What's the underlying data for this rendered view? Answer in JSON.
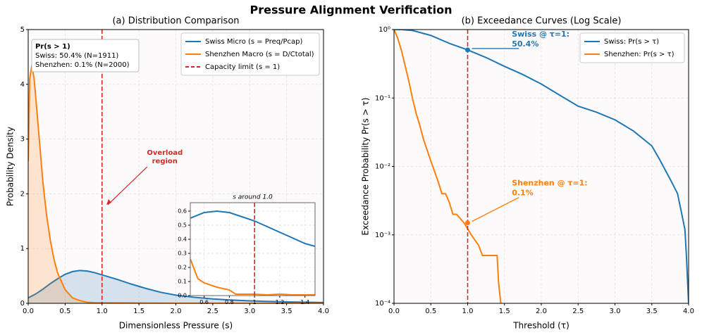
{
  "title": "Pressure Alignment Verification",
  "chart_data": [
    {
      "type": "line",
      "title": "(a) Distribution Comparison",
      "x_label": "Dimensionless Pressure (s)",
      "y_label": "Probability Density",
      "xlim": [
        0,
        4
      ],
      "ylim": [
        0,
        5
      ],
      "xticks": [
        {
          "value": 0,
          "label": "0.0"
        },
        {
          "value": 0.5,
          "label": "0.5"
        },
        {
          "value": 1,
          "label": "1.0"
        },
        {
          "value": 1.5,
          "label": "1.5"
        },
        {
          "value": 2,
          "label": "2.0"
        },
        {
          "value": 2.5,
          "label": "2.5"
        },
        {
          "value": 3,
          "label": "3.0"
        },
        {
          "value": 3.5,
          "label": "3.5"
        },
        {
          "value": 4,
          "label": "4.0"
        }
      ],
      "yticks": [
        0,
        1,
        2,
        3,
        4,
        5
      ],
      "grid": true,
      "fill": true,
      "legend": "upper right",
      "series": [
        {
          "name": "Swiss Micro (s = Preq/Pcap)",
          "color": "#1f77b4",
          "x": [
            0,
            0.1,
            0.2,
            0.3,
            0.4,
            0.5,
            0.6,
            0.7,
            0.8,
            0.9,
            1.0,
            1.2,
            1.4,
            1.6,
            1.8,
            2.0,
            2.25,
            2.5,
            2.75,
            3.0,
            3.5,
            4.0
          ],
          "values": [
            0.1,
            0.17,
            0.26,
            0.36,
            0.45,
            0.53,
            0.58,
            0.6,
            0.59,
            0.56,
            0.52,
            0.44,
            0.35,
            0.27,
            0.2,
            0.15,
            0.11,
            0.08,
            0.06,
            0.045,
            0.025,
            0.015
          ]
        },
        {
          "name": "Shenzhen Macro (s = D/Ctotal)",
          "color": "#ff7f0e",
          "x": [
            0,
            0.02,
            0.05,
            0.08,
            0.1,
            0.15,
            0.2,
            0.25,
            0.3,
            0.35,
            0.4,
            0.5,
            0.6,
            0.7,
            0.8,
            0.9,
            1.0,
            1.5,
            2.0,
            3.0,
            4.0
          ],
          "values": [
            2.6,
            4.1,
            4.35,
            4.1,
            3.8,
            3.0,
            2.2,
            1.6,
            1.15,
            0.8,
            0.55,
            0.25,
            0.1,
            0.05,
            0.02,
            0.01,
            0.01,
            0.005,
            0,
            0,
            0
          ]
        }
      ],
      "reference_lines": [
        {
          "x": 1,
          "label": "Capacity limit (s = 1)",
          "color": "#d62728"
        }
      ],
      "info_box": [
        "Pr(s > 1)",
        "Swiss: 50.4% (N=1911)",
        "Shenzhen: 0.1% (N=2000)"
      ],
      "annotations": [
        {
          "text": [
            "Overload",
            "region"
          ],
          "color": "#d62728"
        }
      ]
    },
    {
      "type": "line",
      "title": "s around 1.0",
      "xlim": [
        0.49,
        1.48
      ],
      "ylim": [
        0,
        0.66
      ],
      "xticks": [
        0.6,
        0.8,
        1.0,
        1.2,
        1.4
      ],
      "yticks": [
        {
          "value": 0,
          "label": "0.0"
        },
        0.1,
        0.2,
        0.3,
        0.4,
        0.5,
        0.6
      ],
      "grid": true,
      "series": [
        {
          "color": "#1f77b4",
          "x": [
            0.49,
            0.6,
            0.7,
            0.8,
            0.9,
            1.0,
            1.1,
            1.2,
            1.3,
            1.4,
            1.48
          ],
          "values": [
            0.55,
            0.59,
            0.6,
            0.59,
            0.56,
            0.53,
            0.49,
            0.45,
            0.41,
            0.37,
            0.35
          ]
        },
        {
          "color": "#ff7f0e",
          "x": [
            0.49,
            0.55,
            0.6,
            0.7,
            0.8,
            0.85,
            0.9,
            1.0,
            1.1,
            1.2,
            1.3,
            1.48
          ],
          "values": [
            0.26,
            0.12,
            0.09,
            0.06,
            0.04,
            0.01,
            0.01,
            0.01,
            0.005,
            0.01,
            0.005,
            0.005
          ]
        }
      ],
      "reference_lines": [
        {
          "x": 1,
          "color": "#d62728"
        }
      ]
    },
    {
      "type": "line",
      "title": "(b) Exceedance Curves (Log Scale)",
      "x_label": "Threshold (τ)",
      "y_label": "Exceedance Probability  Pr(s > τ)",
      "xlim": [
        0,
        4
      ],
      "ylim": [
        0.0001,
        1
      ],
      "log_y": true,
      "xticks": [
        {
          "value": 0,
          "label": "0.0"
        },
        {
          "value": 0.5,
          "label": "0.5"
        },
        {
          "value": 1,
          "label": "1.0"
        },
        {
          "value": 1.5,
          "label": "1.5"
        },
        {
          "value": 2,
          "label": "2.0"
        },
        {
          "value": 2.5,
          "label": "2.5"
        },
        {
          "value": 3,
          "label": "3.0"
        },
        {
          "value": 3.5,
          "label": "3.5"
        },
        {
          "value": 4,
          "label": "4.0"
        }
      ],
      "yticks": [
        {
          "value": 0.0001,
          "label": "10⁻⁴"
        },
        {
          "value": 0.001,
          "label": "10⁻³"
        },
        {
          "value": 0.01,
          "label": "10⁻²"
        },
        {
          "value": 0.1,
          "label": "10⁻¹"
        },
        {
          "value": 1,
          "label": "10⁰"
        }
      ],
      "grid": true,
      "legend": "upper right",
      "series": [
        {
          "name": "Swiss: Pr(s > τ)",
          "color": "#1f77b4",
          "x": [
            0,
            0.1,
            0.25,
            0.5,
            0.75,
            1.0,
            1.25,
            1.5,
            1.75,
            2.0,
            2.25,
            2.5,
            2.75,
            3.0,
            3.25,
            3.5,
            3.6,
            3.75,
            3.85,
            3.9,
            3.95,
            3.97,
            4.0
          ],
          "values": [
            1,
            1,
            0.97,
            0.82,
            0.63,
            0.504,
            0.39,
            0.29,
            0.22,
            0.16,
            0.11,
            0.076,
            0.062,
            0.048,
            0.033,
            0.02,
            0.013,
            0.0065,
            0.004,
            0.0022,
            0.0012,
            0.0005,
            0.0001
          ]
        },
        {
          "name": "Shenzhen: Pr(s > τ)",
          "color": "#ff7f0e",
          "x": [
            0,
            0.05,
            0.1,
            0.15,
            0.2,
            0.25,
            0.3,
            0.35,
            0.4,
            0.5,
            0.6,
            0.65,
            0.7,
            0.75,
            0.8,
            0.85,
            0.95,
            1.05,
            1.15,
            1.2,
            1.4,
            1.42,
            1.45
          ],
          "values": [
            1,
            0.75,
            0.5,
            0.3,
            0.18,
            0.1,
            0.06,
            0.04,
            0.025,
            0.012,
            0.006,
            0.004,
            0.004,
            0.003,
            0.002,
            0.002,
            0.0015,
            0.001,
            0.0007,
            0.0005,
            0.0005,
            0.0002,
            0.0001
          ]
        }
      ],
      "reference_lines": [
        {
          "x": 1,
          "color": "#d62728"
        }
      ],
      "points": [
        {
          "x": 1,
          "y": 0.504,
          "color": "#1f77b4",
          "text": [
            "Swiss @ τ=1:",
            "50.4%"
          ]
        },
        {
          "x": 1,
          "y": 0.0015,
          "color": "#ff7f0e",
          "text": [
            "Shenzhen @ τ=1:",
            "0.1%"
          ]
        }
      ]
    }
  ]
}
